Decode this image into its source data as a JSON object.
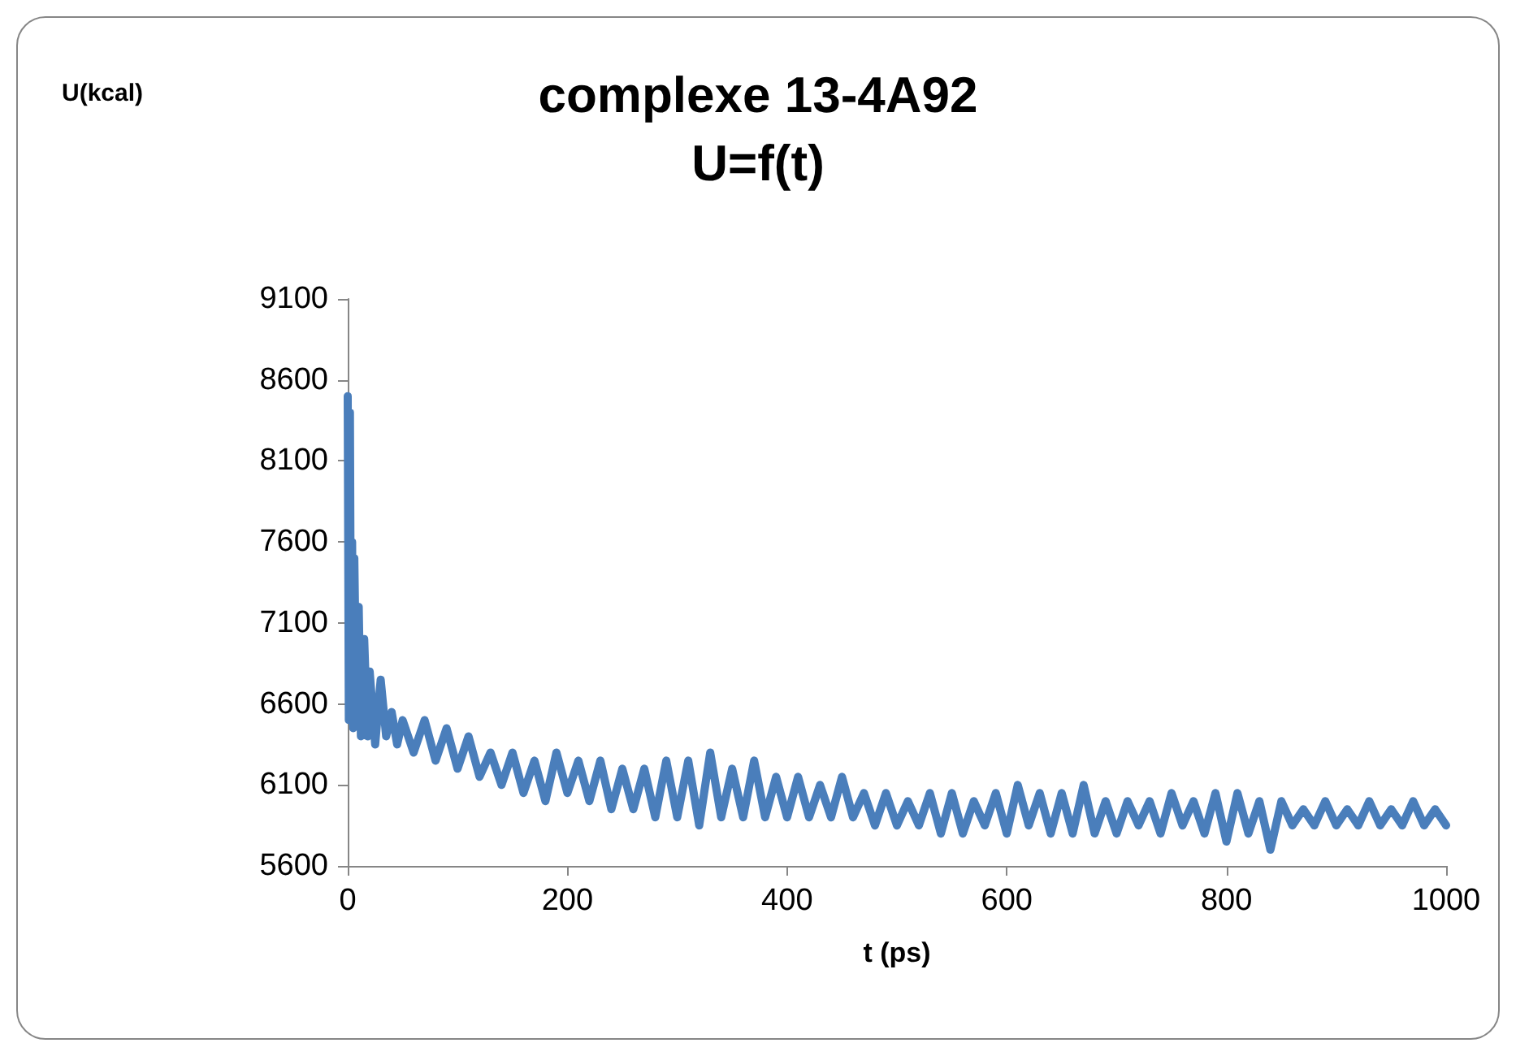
{
  "chart_data": {
    "type": "line",
    "title": "complexe 13-4A92",
    "subtitle": "U=f(t)",
    "xlabel": "t (ps)",
    "annotations": [
      "U(kcal)"
    ],
    "xlim": [
      0,
      1000
    ],
    "xticks": [
      0,
      200,
      400,
      600,
      800,
      1000
    ],
    "ylim": [
      5600,
      9100
    ],
    "yticks": [
      5600,
      6100,
      6600,
      7100,
      7600,
      8100,
      8600,
      9100
    ],
    "grid": false,
    "marker": "none",
    "line_style": "solid",
    "series": [
      {
        "color": "#4a7ebb",
        "x": [
          0,
          1,
          2,
          3,
          4,
          5,
          6,
          8,
          10,
          12,
          15,
          18,
          20,
          25,
          30,
          35,
          40,
          45,
          50,
          60,
          70,
          80,
          90,
          100,
          110,
          120,
          130,
          140,
          150,
          160,
          170,
          180,
          190,
          200,
          210,
          220,
          230,
          240,
          250,
          260,
          270,
          280,
          290,
          300,
          310,
          320,
          330,
          340,
          350,
          360,
          370,
          380,
          390,
          400,
          410,
          420,
          430,
          440,
          450,
          460,
          470,
          480,
          490,
          500,
          510,
          520,
          530,
          540,
          550,
          560,
          570,
          580,
          590,
          600,
          610,
          620,
          630,
          640,
          650,
          660,
          670,
          680,
          690,
          700,
          710,
          720,
          730,
          740,
          750,
          760,
          770,
          780,
          790,
          800,
          810,
          820,
          830,
          840,
          850,
          860,
          870,
          880,
          890,
          900,
          910,
          920,
          930,
          940,
          950,
          960,
          970,
          980,
          990,
          1000
        ],
        "values": [
          8500,
          6500,
          8400,
          6600,
          7600,
          6450,
          7500,
          6500,
          7200,
          6400,
          7000,
          6400,
          6800,
          6350,
          6750,
          6400,
          6550,
          6350,
          6500,
          6300,
          6500,
          6250,
          6450,
          6200,
          6400,
          6150,
          6300,
          6100,
          6300,
          6050,
          6250,
          6000,
          6300,
          6050,
          6250,
          6000,
          6250,
          5950,
          6200,
          5950,
          6200,
          5900,
          6250,
          5900,
          6250,
          5850,
          6300,
          5900,
          6200,
          5900,
          6250,
          5900,
          6150,
          5900,
          6150,
          5900,
          6100,
          5900,
          6150,
          5900,
          6050,
          5850,
          6050,
          5850,
          6000,
          5850,
          6050,
          5800,
          6050,
          5800,
          6000,
          5850,
          6050,
          5800,
          6100,
          5850,
          6050,
          5800,
          6050,
          5800,
          6100,
          5800,
          6000,
          5800,
          6000,
          5850,
          6000,
          5800,
          6050,
          5850,
          6000,
          5800,
          6050,
          5750,
          6050,
          5800,
          6000,
          5700,
          6000,
          5850,
          5950,
          5850,
          6000,
          5850,
          5950,
          5850,
          6000,
          5850,
          5950,
          5850,
          6000,
          5850,
          5950,
          5850
        ]
      }
    ]
  }
}
